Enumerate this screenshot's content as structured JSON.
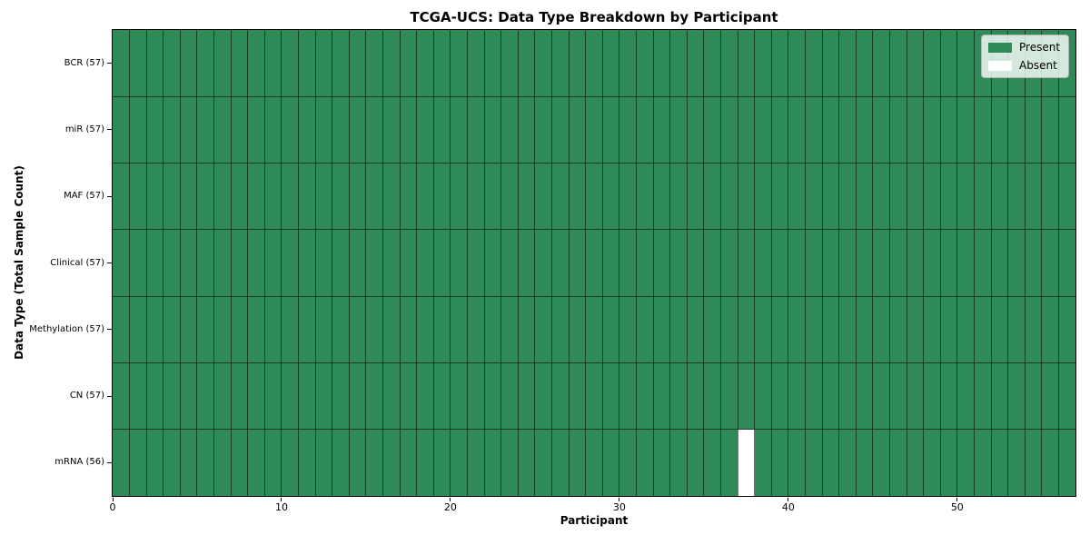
{
  "chart_data": {
    "type": "heatmap",
    "title": "TCGA-UCS: Data Type Breakdown by Participant",
    "xlabel": "Participant",
    "ylabel": "Data Type (Total Sample Count)",
    "x_ticks": [
      0,
      10,
      20,
      30,
      40,
      50
    ],
    "x_range": [
      0,
      57
    ],
    "n_participants": 57,
    "grid": true,
    "legend_position": "upper right",
    "rows": [
      {
        "label": "BCR (57)",
        "data_type": "BCR",
        "present_count": 57,
        "absent_participants": []
      },
      {
        "label": "miR (57)",
        "data_type": "miR",
        "present_count": 57,
        "absent_participants": []
      },
      {
        "label": "MAF (57)",
        "data_type": "MAF",
        "present_count": 57,
        "absent_participants": []
      },
      {
        "label": "Clinical (57)",
        "data_type": "Clinical",
        "present_count": 57,
        "absent_participants": []
      },
      {
        "label": "Methylation (57)",
        "data_type": "Methylation",
        "present_count": 57,
        "absent_participants": []
      },
      {
        "label": "CN (57)",
        "data_type": "CN",
        "present_count": 57,
        "absent_participants": []
      },
      {
        "label": "mRNA (56)",
        "data_type": "mRNA",
        "present_count": 56,
        "absent_participants": [
          37
        ]
      }
    ],
    "legend": [
      {
        "label": "Present",
        "color": "#2e8b57"
      },
      {
        "label": "Absent",
        "color": "#ffffff"
      }
    ],
    "colors": {
      "present": "#2e8b57",
      "absent": "#ffffff",
      "gridline": "#000000",
      "background": "#ffffff",
      "spine": "#000000"
    }
  }
}
